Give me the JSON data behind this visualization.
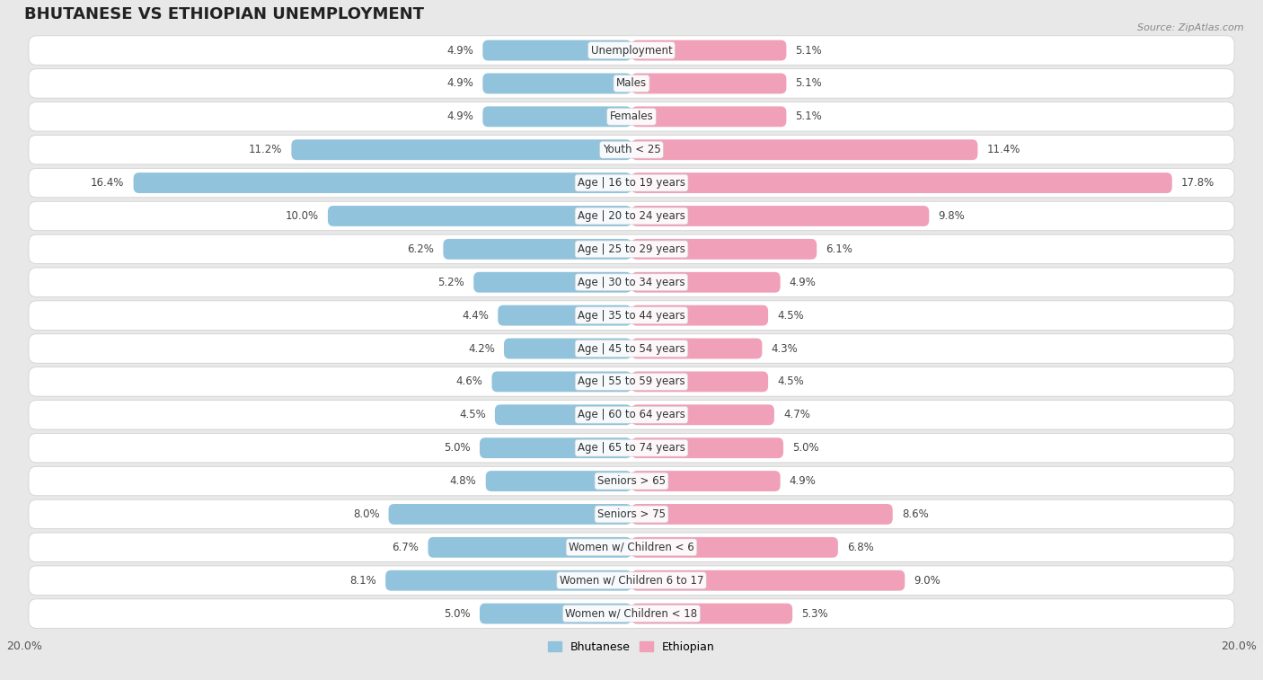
{
  "title": "BHUTANESE VS ETHIOPIAN UNEMPLOYMENT",
  "source": "Source: ZipAtlas.com",
  "categories": [
    "Unemployment",
    "Males",
    "Females",
    "Youth < 25",
    "Age | 16 to 19 years",
    "Age | 20 to 24 years",
    "Age | 25 to 29 years",
    "Age | 30 to 34 years",
    "Age | 35 to 44 years",
    "Age | 45 to 54 years",
    "Age | 55 to 59 years",
    "Age | 60 to 64 years",
    "Age | 65 to 74 years",
    "Seniors > 65",
    "Seniors > 75",
    "Women w/ Children < 6",
    "Women w/ Children 6 to 17",
    "Women w/ Children < 18"
  ],
  "bhutanese": [
    4.9,
    4.9,
    4.9,
    11.2,
    16.4,
    10.0,
    6.2,
    5.2,
    4.4,
    4.2,
    4.6,
    4.5,
    5.0,
    4.8,
    8.0,
    6.7,
    8.1,
    5.0
  ],
  "ethiopian": [
    5.1,
    5.1,
    5.1,
    11.4,
    17.8,
    9.8,
    6.1,
    4.9,
    4.5,
    4.3,
    4.5,
    4.7,
    5.0,
    4.9,
    8.6,
    6.8,
    9.0,
    5.3
  ],
  "bhutanese_color": "#91C3DC",
  "ethiopian_color": "#F0A0B8",
  "axis_max": 20.0,
  "background_color": "#e8e8e8",
  "row_bg_color": "#f0f0f0",
  "card_color": "#ffffff",
  "title_fontsize": 13,
  "label_fontsize": 8.5,
  "value_fontsize": 8.5,
  "tick_fontsize": 9,
  "legend_fontsize": 9
}
